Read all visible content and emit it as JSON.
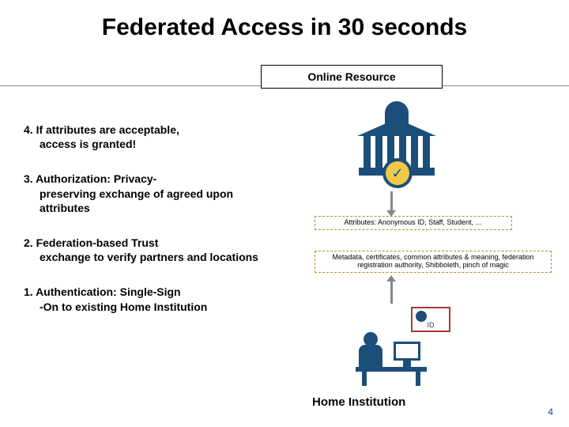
{
  "title": "Federated Access in 30 seconds",
  "resource_label": "Online Resource",
  "home_label": "Home Institution",
  "page_number": "4",
  "steps": [
    {
      "num": "4.",
      "first": "If attributes are acceptable,",
      "rest": "access is granted!"
    },
    {
      "num": "3.",
      "first": "Authorization: Privacy-",
      "rest": "preserving exchange of agreed upon attributes"
    },
    {
      "num": "2.",
      "first": "Federation-based Trust",
      "rest": "exchange to verify partners and locations"
    },
    {
      "num": "1.",
      "first": "Authentication: Single-Sign",
      "rest": "-On to existing Home Institution"
    }
  ],
  "attributes_box": "Attributes: Anonymous ID, Staff, Student, …",
  "metadata_box": "Metadata, certificates, common attributes & meaning, federation registration authority, Shibboleth, pinch of magic",
  "id_label": "ID",
  "badge_mark": "✓",
  "colors": {
    "primary": "#1b4f7a",
    "dashed_border": "#c0882a",
    "id_border": "#a43a3a",
    "arrow": "#888888",
    "pagenum": "#0b4f8f"
  }
}
